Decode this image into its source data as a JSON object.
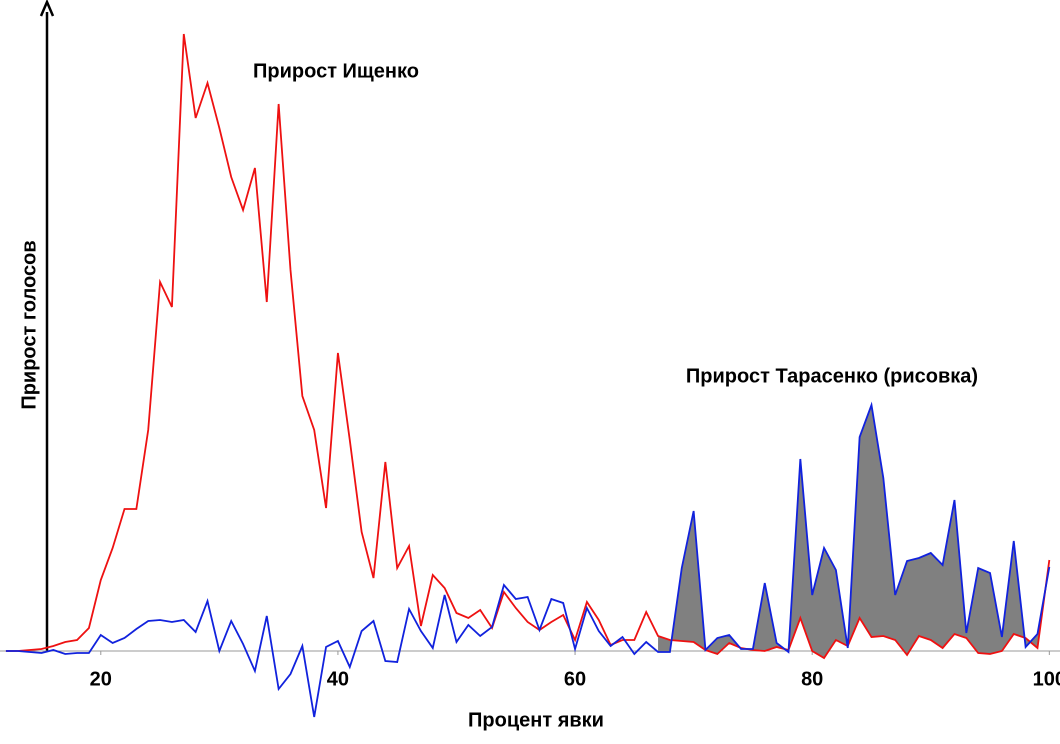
{
  "chart_data": {
    "type": "line",
    "xlabel": "Процент явки",
    "ylabel": "Прирост голосов",
    "annotations": [
      "Прирост Ищенко",
      "Прирост Тарасенко (рисовка)"
    ],
    "x": [
      12,
      13,
      14,
      15,
      16,
      17,
      18,
      19,
      20,
      21,
      22,
      23,
      24,
      25,
      26,
      27,
      28,
      29,
      30,
      31,
      32,
      33,
      34,
      35,
      36,
      37,
      38,
      39,
      40,
      41,
      42,
      43,
      44,
      45,
      46,
      47,
      48,
      49,
      50,
      51,
      52,
      53,
      54,
      55,
      56,
      57,
      58,
      59,
      60,
      61,
      62,
      63,
      64,
      65,
      66,
      67,
      68,
      69,
      70,
      71,
      72,
      73,
      74,
      75,
      76,
      77,
      78,
      79,
      80,
      81,
      82,
      83,
      84,
      85,
      86,
      87,
      88,
      89,
      90,
      91,
      92,
      93,
      94,
      95,
      96,
      97,
      98,
      99,
      100
    ],
    "series": [
      {
        "name": "Прирост Ищенко",
        "color": "#ee1111",
        "values": [
          0,
          0,
          0.1,
          0.2,
          0.5,
          0.9,
          1.1,
          2.3,
          7.1,
          10.3,
          14.2,
          14.2,
          22.1,
          36.9,
          34.4,
          61.7,
          53.3,
          56.8,
          52.3,
          47.4,
          44.1,
          48.3,
          34.9,
          54.7,
          38.1,
          25.5,
          22.1,
          14.3,
          29.8,
          21.1,
          11.9,
          7.3,
          18.9,
          8.3,
          10.5,
          2.5,
          7.6,
          6.3,
          3.8,
          3.3,
          4.1,
          2.3,
          5.9,
          4.3,
          2.9,
          2.1,
          2.9,
          3.6,
          1.1,
          4.9,
          3.1,
          0.6,
          1.1,
          1.1,
          3.9,
          1.5,
          1.1,
          1.0,
          0.9,
          0.1,
          -0.3,
          0.8,
          0.3,
          0.1,
          0,
          0.4,
          0.1,
          3.3,
          0,
          -0.7,
          1.1,
          0.5,
          3.3,
          1.4,
          1.5,
          1.1,
          -0.4,
          1.5,
          1.1,
          0.3,
          1.7,
          1.3,
          -0.2,
          -0.3,
          0,
          1.7,
          1.3,
          0.3,
          9.1
        ]
      },
      {
        "name": "Прирост Тарасенко (рисовка)",
        "color": "#1122dd",
        "values": [
          0,
          0,
          -0.1,
          -0.2,
          0.1,
          -0.3,
          -0.2,
          -0.2,
          1.6,
          0.8,
          1.3,
          2.2,
          3.0,
          3.1,
          2.9,
          3.1,
          1.9,
          5.0,
          0,
          3.0,
          0.7,
          -2.0,
          3.5,
          -3.8,
          -2.3,
          0.5,
          -6.6,
          0.4,
          1.0,
          -1.6,
          2.0,
          3.0,
          -1.0,
          -1.1,
          4.2,
          2.0,
          0.3,
          5.6,
          0.9,
          2.6,
          1.5,
          2.4,
          6.6,
          5.2,
          5.4,
          2.1,
          5.2,
          4.8,
          0.2,
          4.3,
          2.0,
          0.5,
          1.4,
          -0.3,
          0.9,
          -0.1,
          -0.1,
          8.3,
          14.0,
          0.1,
          1.3,
          1.6,
          0.2,
          0.2,
          6.8,
          0.8,
          -0.1,
          19.2,
          5.6,
          10.3,
          8.1,
          0.3,
          21.4,
          24.6,
          17.3,
          5.6,
          9.0,
          9.3,
          9.8,
          8.6,
          15.1,
          1.8,
          8.3,
          7.8,
          1.4,
          11.0,
          0.4,
          1.7,
          8.4
        ]
      }
    ],
    "fill_color": "#808080",
    "fill_xlim": [
      67,
      100
    ],
    "xlim": [
      11.5,
      100.9
    ],
    "ylim": [
      -7.3,
      65.1
    ],
    "xticks": [
      20,
      40,
      60,
      80,
      100
    ]
  }
}
